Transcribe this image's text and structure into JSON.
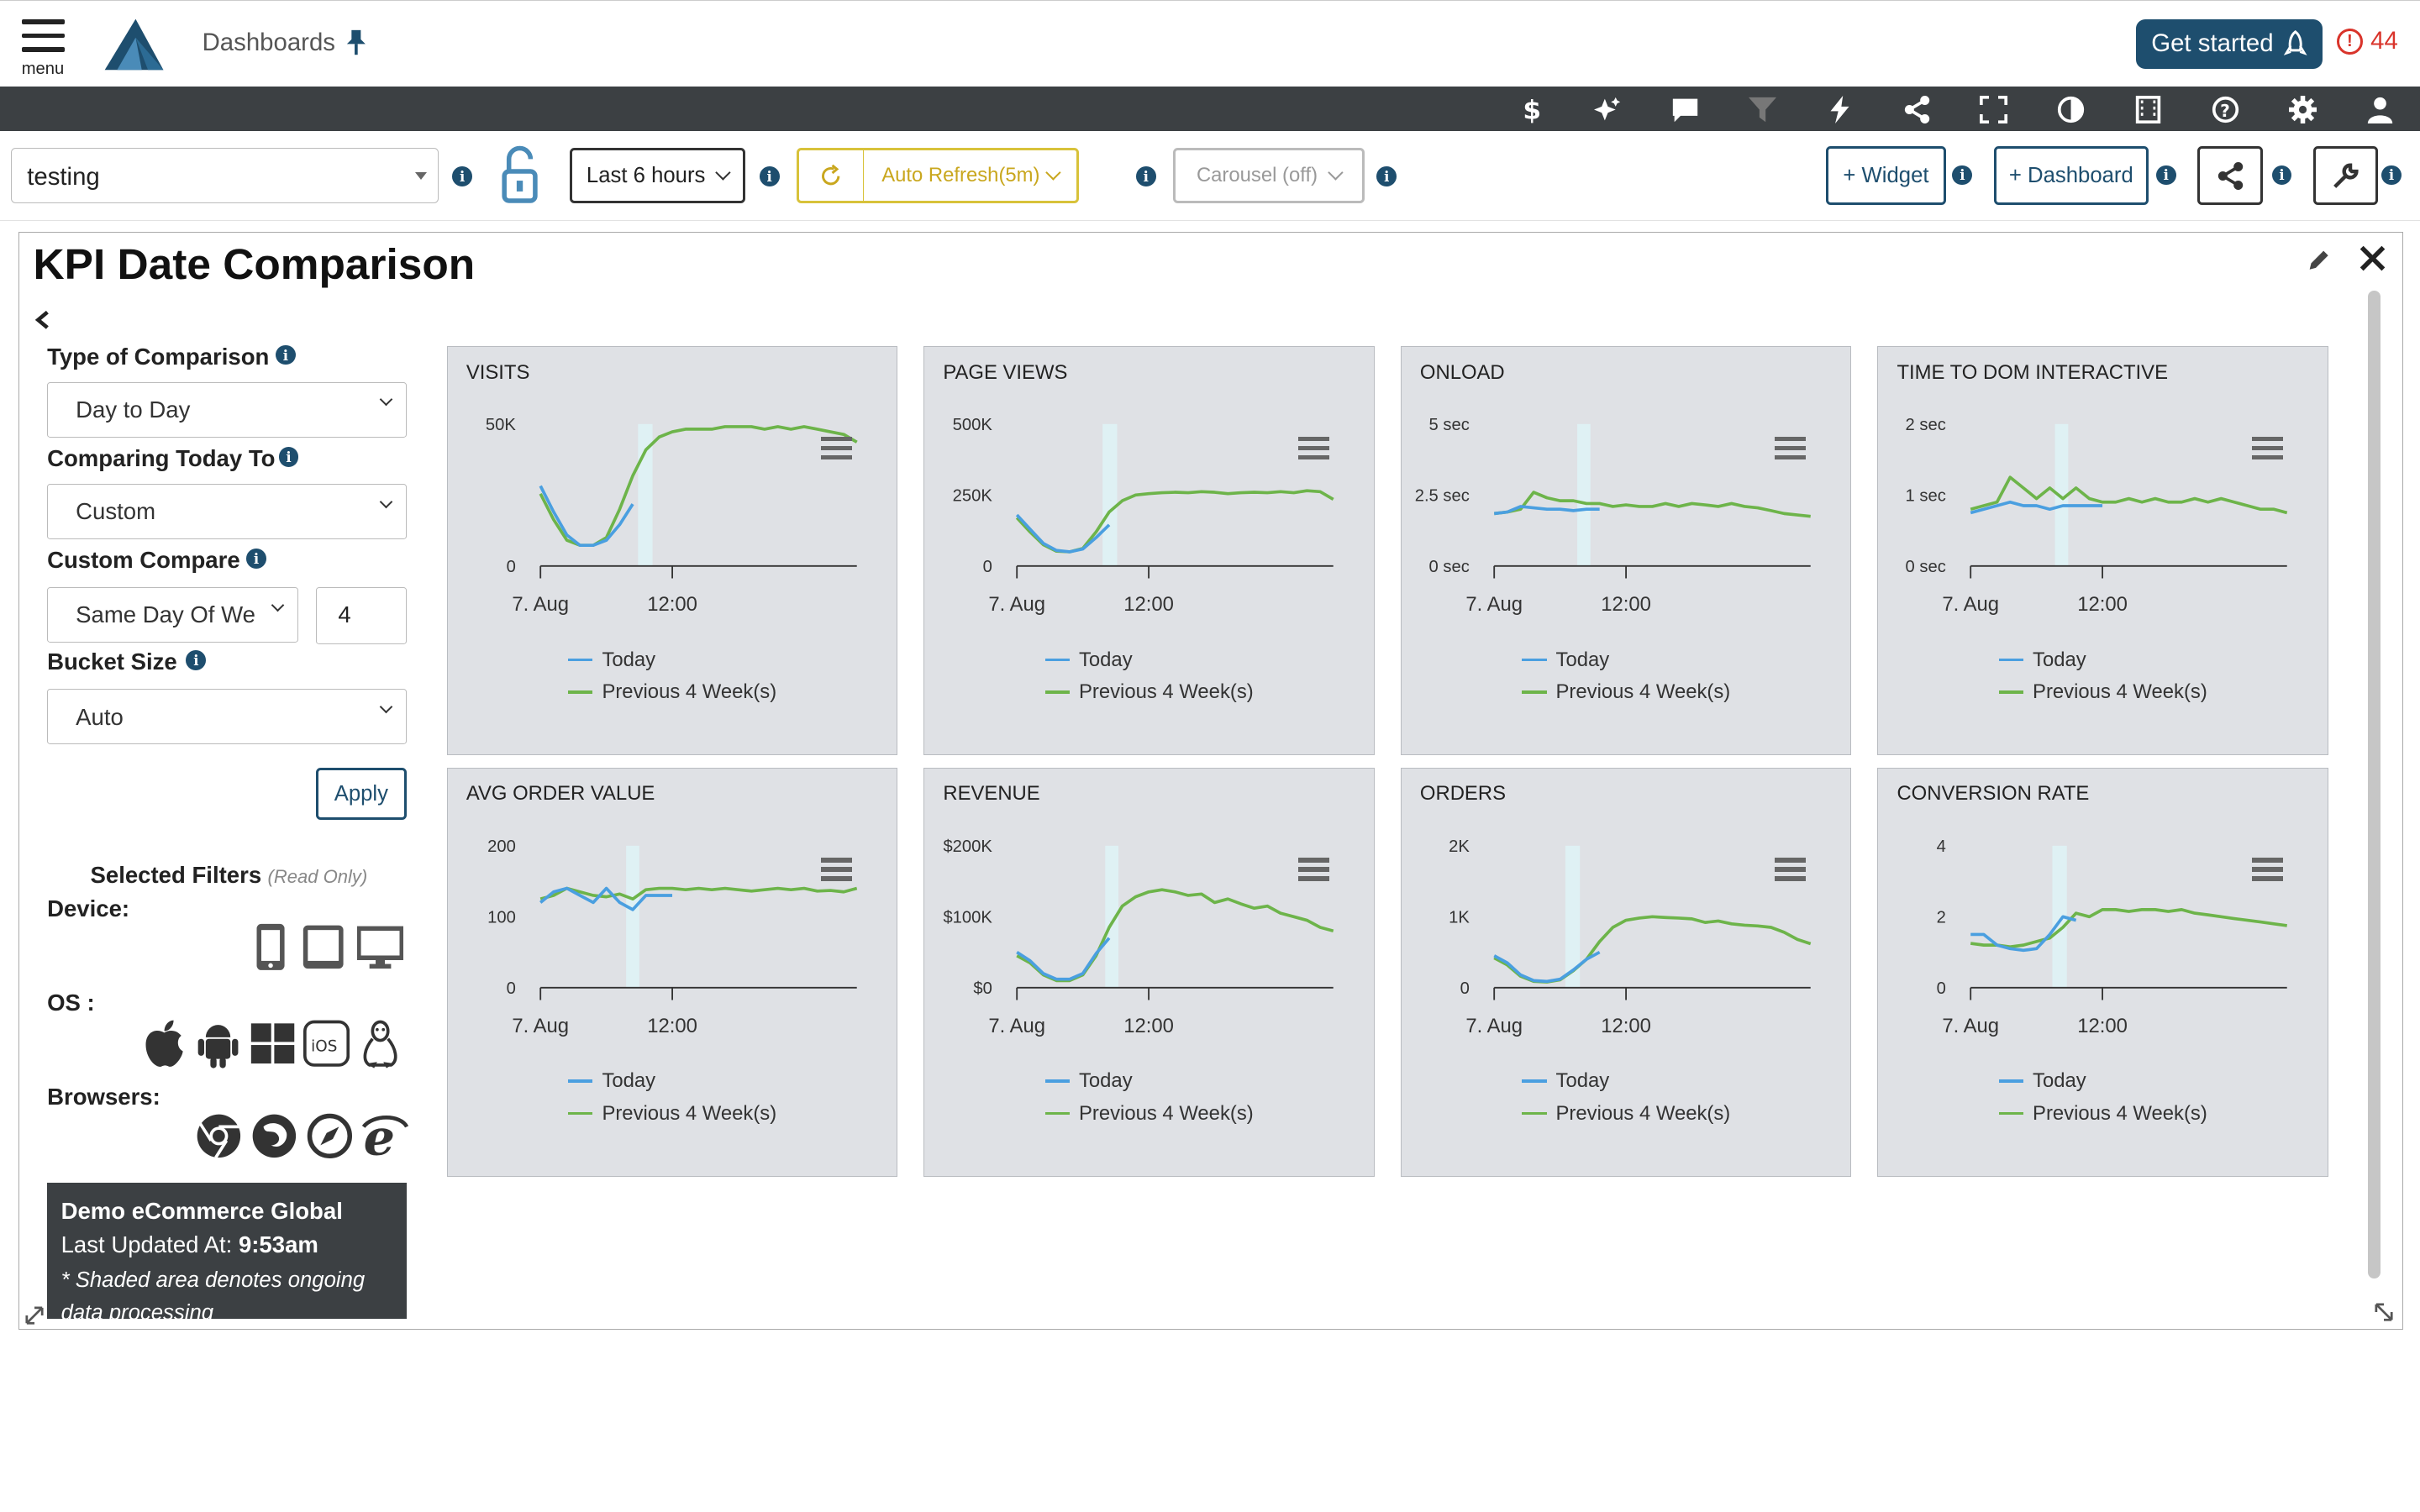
{
  "header": {
    "menu_label": "menu",
    "dashboards_label": "Dashboards",
    "get_started_label": "Get started",
    "alert_count": "44",
    "alert_symbol": "!"
  },
  "toolbar": {
    "icons": [
      "dollar-icon",
      "sparkle-icon",
      "comment-icon",
      "filter-icon",
      "bolt-icon",
      "share-icon",
      "fullscreen-icon",
      "contrast-icon",
      "film-icon",
      "help-icon",
      "gear-icon",
      "user-icon"
    ]
  },
  "controls": {
    "dashboard_value": "testing",
    "time_range": "Last 6 hours",
    "auto_refresh": "Auto Refresh(5m)",
    "carousel": "Carousel (off)",
    "widget_button": "+ Widget",
    "dashboard_button": "+ Dashboard",
    "info_symbol": "i"
  },
  "panel": {
    "title": "KPI Date Comparison"
  },
  "sidebar": {
    "type_label": "Type of Comparison",
    "type_value": "Day to Day",
    "comparing_label": "Comparing Today To",
    "comparing_value": "Custom",
    "custom_label": "Custom Compare",
    "custom_value": "Same Day Of We",
    "custom_number": "4",
    "bucket_label": "Bucket Size",
    "bucket_value": "Auto",
    "apply_label": "Apply",
    "filters_title": "Selected Filters",
    "filters_note": "(Read Only)",
    "device_label": "Device:",
    "os_label": "OS :",
    "browsers_label": "Browsers:",
    "ios_text": "iOS",
    "info_line1": "Demo eCommerce Global",
    "info_updated_prefix": "Last Updated At:",
    "info_updated_time": "9:53am",
    "info_note": "* Shaded area denotes ongoing data processing"
  },
  "colors": {
    "today": "#4a9fe0",
    "previous": "#6db44a",
    "shade": "#dff1f4",
    "brand": "#1e4e6e"
  },
  "chart_data": [
    {
      "type": "line",
      "title": "VISITS",
      "x_ticks": [
        "7. Aug",
        "12:00"
      ],
      "y_ticks": [
        "0",
        "50K"
      ],
      "ylim": [
        0,
        55000
      ],
      "x_range": [
        0,
        24
      ],
      "shade": [
        7.4,
        8.5
      ],
      "series": [
        {
          "name": "Today",
          "x": [
            0,
            1,
            2,
            3,
            4,
            5,
            6,
            7,
            8,
            9,
            10
          ],
          "y": [
            31000,
            21000,
            12000,
            8000,
            8000,
            10000,
            16000,
            24000,
            null,
            null,
            null
          ]
        },
        {
          "name": "Previous 4 Week(s)",
          "x": [
            0,
            1,
            2,
            3,
            4,
            5,
            6,
            7,
            8,
            9,
            10,
            11,
            12,
            13,
            14,
            15,
            16,
            17,
            18,
            19,
            20,
            21,
            22,
            23,
            24
          ],
          "y": [
            28000,
            18000,
            10000,
            8000,
            8000,
            11000,
            22000,
            35000,
            45000,
            50000,
            52000,
            53000,
            53000,
            53000,
            54000,
            54000,
            54000,
            53000,
            54000,
            53000,
            54000,
            53000,
            52000,
            51000,
            48000
          ]
        }
      ],
      "legend": [
        "Today",
        "Previous 4 Week(s)"
      ]
    },
    {
      "type": "line",
      "title": "PAGE VIEWS",
      "x_ticks": [
        "7. Aug",
        "12:00"
      ],
      "y_ticks": [
        "0",
        "250K",
        "500K"
      ],
      "ylim": [
        0,
        500000
      ],
      "x_range": [
        0,
        24
      ],
      "shade": [
        6.5,
        7.6
      ],
      "series": [
        {
          "name": "Today",
          "x": [
            0,
            1,
            2,
            3,
            4,
            5,
            6,
            7,
            8,
            9,
            10
          ],
          "y": [
            180000,
            130000,
            80000,
            55000,
            50000,
            60000,
            100000,
            145000,
            null,
            null,
            null
          ]
        },
        {
          "name": "Previous 4 Week(s)",
          "x": [
            0,
            1,
            2,
            3,
            4,
            5,
            6,
            7,
            8,
            9,
            10,
            11,
            12,
            13,
            14,
            15,
            16,
            17,
            18,
            19,
            20,
            21,
            22,
            23,
            24
          ],
          "y": [
            170000,
            120000,
            75000,
            52000,
            50000,
            62000,
            120000,
            190000,
            230000,
            250000,
            255000,
            258000,
            260000,
            258000,
            262000,
            260000,
            255000,
            258000,
            260000,
            258000,
            262000,
            258000,
            265000,
            262000,
            235000
          ]
        }
      ],
      "legend": [
        "Today",
        "Previous 4 Week(s)"
      ]
    },
    {
      "type": "line",
      "title": "ONLOAD",
      "x_ticks": [
        "7. Aug",
        "12:00"
      ],
      "y_ticks": [
        "0 sec",
        "2.5 sec",
        "5 sec"
      ],
      "ylim": [
        0,
        5
      ],
      "x_range": [
        0,
        24
      ],
      "shade": [
        6.3,
        7.3
      ],
      "series": [
        {
          "name": "Today",
          "x": [
            0,
            1,
            2,
            3,
            4,
            5,
            6,
            7,
            8
          ],
          "y": [
            1.85,
            1.9,
            2.1,
            2.05,
            2.0,
            2.0,
            1.95,
            2.0,
            2.0
          ]
        },
        {
          "name": "Previous 4 Week(s)",
          "x": [
            0,
            1,
            2,
            3,
            4,
            5,
            6,
            7,
            8,
            9,
            10,
            11,
            12,
            13,
            14,
            15,
            16,
            17,
            18,
            19,
            20,
            21,
            22,
            23,
            24
          ],
          "y": [
            1.85,
            1.9,
            2.0,
            2.6,
            2.4,
            2.3,
            2.3,
            2.2,
            2.2,
            2.1,
            2.15,
            2.1,
            2.1,
            2.2,
            2.1,
            2.2,
            2.15,
            2.1,
            2.2,
            2.1,
            2.05,
            1.95,
            1.85,
            1.8,
            1.75
          ]
        }
      ],
      "legend": [
        "Today",
        "Previous 4 Week(s)"
      ]
    },
    {
      "type": "line",
      "title": "TIME TO DOM INTERACTIVE",
      "x_ticks": [
        "7. Aug",
        "12:00"
      ],
      "y_ticks": [
        "0 sec",
        "1 sec",
        "2 sec"
      ],
      "ylim": [
        0,
        2
      ],
      "x_range": [
        0,
        24
      ],
      "shade": [
        6.4,
        7.4
      ],
      "series": [
        {
          "name": "Today",
          "x": [
            0,
            1,
            2,
            3,
            4,
            5,
            6,
            7,
            8,
            9,
            10
          ],
          "y": [
            0.75,
            0.8,
            0.85,
            0.9,
            0.85,
            0.85,
            0.8,
            0.85,
            0.85,
            0.85,
            0.85
          ]
        },
        {
          "name": "Previous 4 Week(s)",
          "x": [
            0,
            1,
            2,
            3,
            4,
            5,
            6,
            7,
            8,
            9,
            10,
            11,
            12,
            13,
            14,
            15,
            16,
            17,
            18,
            19,
            20,
            21,
            22,
            23,
            24
          ],
          "y": [
            0.8,
            0.85,
            0.9,
            1.25,
            1.1,
            0.95,
            1.1,
            0.95,
            1.1,
            0.95,
            0.9,
            0.9,
            0.95,
            0.9,
            0.95,
            0.9,
            0.9,
            0.95,
            0.9,
            0.95,
            0.9,
            0.85,
            0.8,
            0.8,
            0.75
          ]
        }
      ],
      "legend": [
        "Today",
        "Previous 4 Week(s)"
      ]
    },
    {
      "type": "line",
      "title": "AVG ORDER VALUE",
      "x_ticks": [
        "7. Aug",
        "12:00"
      ],
      "y_ticks": [
        "0",
        "100",
        "200"
      ],
      "ylim": [
        0,
        200
      ],
      "x_range": [
        0,
        24
      ],
      "shade": [
        6.5,
        7.5
      ],
      "series": [
        {
          "name": "Today",
          "x": [
            0,
            1,
            2,
            3,
            4,
            5,
            6,
            7,
            8,
            9,
            10
          ],
          "y": [
            120,
            135,
            140,
            130,
            120,
            140,
            120,
            110,
            130,
            130,
            130
          ]
        },
        {
          "name": "Previous 4 Week(s)",
          "x": [
            0,
            1,
            2,
            3,
            4,
            5,
            6,
            7,
            8,
            9,
            10,
            11,
            12,
            13,
            14,
            15,
            16,
            17,
            18,
            19,
            20,
            21,
            22,
            23,
            24
          ],
          "y": [
            125,
            130,
            140,
            135,
            130,
            128,
            132,
            125,
            138,
            140,
            140,
            138,
            140,
            138,
            140,
            138,
            136,
            138,
            140,
            138,
            140,
            136,
            137,
            135,
            140
          ]
        }
      ],
      "legend": [
        "Today",
        "Previous 4 Week(s)"
      ]
    },
    {
      "type": "line",
      "title": "REVENUE",
      "x_ticks": [
        "7. Aug",
        "12:00"
      ],
      "y_ticks": [
        "$0",
        "$100K",
        "$200K"
      ],
      "ylim": [
        0,
        200000
      ],
      "x_range": [
        0,
        24
      ],
      "shade": [
        6.7,
        7.7
      ],
      "series": [
        {
          "name": "Today",
          "x": [
            0,
            1,
            2,
            3,
            4,
            5,
            6,
            7,
            8,
            9
          ],
          "y": [
            50000,
            38000,
            20000,
            12000,
            12000,
            20000,
            48000,
            70000,
            null,
            null
          ]
        },
        {
          "name": "Previous 4 Week(s)",
          "x": [
            0,
            1,
            2,
            3,
            4,
            5,
            6,
            7,
            8,
            9,
            10,
            11,
            12,
            13,
            14,
            15,
            16,
            17,
            18,
            19,
            20,
            21,
            22,
            23,
            24
          ],
          "y": [
            45000,
            35000,
            18000,
            10000,
            10000,
            18000,
            45000,
            85000,
            115000,
            128000,
            135000,
            138000,
            135000,
            130000,
            132000,
            120000,
            125000,
            118000,
            112000,
            115000,
            105000,
            100000,
            95000,
            85000,
            80000
          ]
        }
      ],
      "legend": [
        "Today",
        "Previous 4 Week(s)"
      ]
    },
    {
      "type": "line",
      "title": "ORDERS",
      "x_ticks": [
        "7. Aug",
        "12:00"
      ],
      "y_ticks": [
        "0",
        "1K",
        "2K"
      ],
      "ylim": [
        0,
        2000
      ],
      "x_range": [
        0,
        24
      ],
      "shade": [
        5.4,
        6.5
      ],
      "series": [
        {
          "name": "Today",
          "x": [
            0,
            1,
            2,
            3,
            4,
            5,
            6,
            7,
            8
          ],
          "y": [
            450,
            350,
            180,
            100,
            90,
            120,
            250,
            400,
            500
          ]
        },
        {
          "name": "Previous 4 Week(s)",
          "x": [
            0,
            1,
            2,
            3,
            4,
            5,
            6,
            7,
            8,
            9,
            10,
            11,
            12,
            13,
            14,
            15,
            16,
            17,
            18,
            19,
            20,
            21,
            22,
            23,
            24
          ],
          "y": [
            420,
            320,
            160,
            90,
            80,
            110,
            240,
            400,
            650,
            850,
            950,
            980,
            1000,
            990,
            980,
            970,
            920,
            940,
            900,
            880,
            870,
            850,
            780,
            680,
            620
          ]
        }
      ],
      "legend": [
        "Today",
        "Previous 4 Week(s)"
      ]
    },
    {
      "type": "line",
      "title": "CONVERSION RATE",
      "x_ticks": [
        "7. Aug",
        "12:00"
      ],
      "y_ticks": [
        "0",
        "2",
        "4"
      ],
      "ylim": [
        0,
        4
      ],
      "x_range": [
        0,
        24
      ],
      "shade": [
        6.2,
        7.3
      ],
      "series": [
        {
          "name": "Today",
          "x": [
            0,
            1,
            2,
            3,
            4,
            5,
            6,
            7,
            8
          ],
          "y": [
            1.5,
            1.5,
            1.2,
            1.1,
            1.05,
            1.1,
            1.5,
            2.0,
            1.9
          ]
        },
        {
          "name": "Previous 4 Week(s)",
          "x": [
            0,
            1,
            2,
            3,
            4,
            5,
            6,
            7,
            8,
            9,
            10,
            11,
            12,
            13,
            14,
            15,
            16,
            17,
            18,
            19,
            20,
            21,
            22,
            23,
            24
          ],
          "y": [
            1.25,
            1.2,
            1.2,
            1.15,
            1.2,
            1.3,
            1.4,
            1.7,
            2.1,
            2.0,
            2.2,
            2.2,
            2.15,
            2.2,
            2.2,
            2.15,
            2.2,
            2.1,
            2.05,
            2.0,
            1.95,
            1.9,
            1.85,
            1.8,
            1.75
          ]
        }
      ],
      "legend": [
        "Today",
        "Previous 4 Week(s)"
      ]
    }
  ]
}
